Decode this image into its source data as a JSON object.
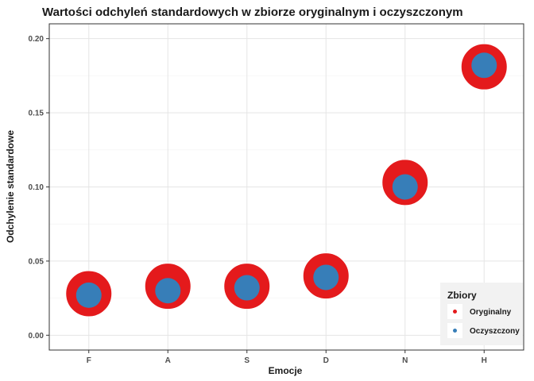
{
  "chart_data": {
    "type": "scatter",
    "title": "Wartości odchyleń standardowych w zbiorze oryginalnym i oczyszczonym",
    "xlabel": "Emocje",
    "ylabel": "Odchylenie standardowe",
    "categories": [
      "F",
      "A",
      "S",
      "D",
      "N",
      "H"
    ],
    "ylim": [
      -0.01,
      0.21
    ],
    "yticks": [
      0.0,
      0.05,
      0.1,
      0.15,
      0.2
    ],
    "ytick_labels": [
      "0.00",
      "0.05",
      "0.10",
      "0.15",
      "0.20"
    ],
    "grid": true,
    "legend": {
      "title": "Zbiory",
      "position": "bottom-right"
    },
    "series": [
      {
        "name": "Oryginalny",
        "color": "#e41a1c",
        "values": [
          0.028,
          0.033,
          0.033,
          0.04,
          0.103,
          0.181
        ]
      },
      {
        "name": "Oczyszczony",
        "color": "#377eb8",
        "values": [
          0.027,
          0.03,
          0.032,
          0.039,
          0.1,
          0.182
        ]
      }
    ]
  }
}
